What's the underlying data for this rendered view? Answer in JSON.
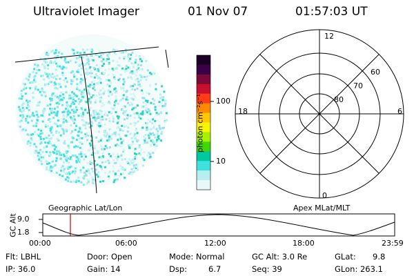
{
  "header": {
    "instrument": "Ultraviolet Imager",
    "date": "01 Nov 07",
    "time": "01:57:03 UT"
  },
  "colorbar": {
    "units_label": "photon cm⁻²s⁻¹",
    "tick_100": "100",
    "tick_10": "10",
    "colors": [
      "#1a0026",
      "#3a0046",
      "#7a0a3a",
      "#c8102e",
      "#ff3b1a",
      "#ff8a00",
      "#ffc800",
      "#f6f600",
      "#a8f000",
      "#3cd800",
      "#00c8a0",
      "#40e0e0",
      "#b8eef0",
      "#e8f8f8"
    ]
  },
  "polar": {
    "lat_80": "80",
    "lat_70": "70",
    "lat_60": "60",
    "mlt_12": "12",
    "mlt_18": "18",
    "mlt_6": "6",
    "mlt_0": "0"
  },
  "orbit": {
    "left_label": "Geographic Lat/Lon",
    "right_label": "Apex MLat/MLT",
    "axis_title": "GC Alt",
    "y_top": "9.0",
    "y_bottom": "1.8",
    "times": [
      "00:00",
      "06:00",
      "12:00",
      "18:00",
      "23:59"
    ]
  },
  "info": {
    "flt": "Flt: LBHL",
    "ip": "IP: 36.0",
    "door": "Door: Open",
    "gain": "Gain: 14",
    "mode": "Mode: Normal",
    "dsp_label": "Dsp:",
    "dsp_value": "6.7",
    "gc_alt": "GC Alt: 3.0 Re",
    "seq": "Seq: 39",
    "glat_label": "GLat:",
    "glat_value": "9.8",
    "glon": "GLon: 263.1"
  }
}
